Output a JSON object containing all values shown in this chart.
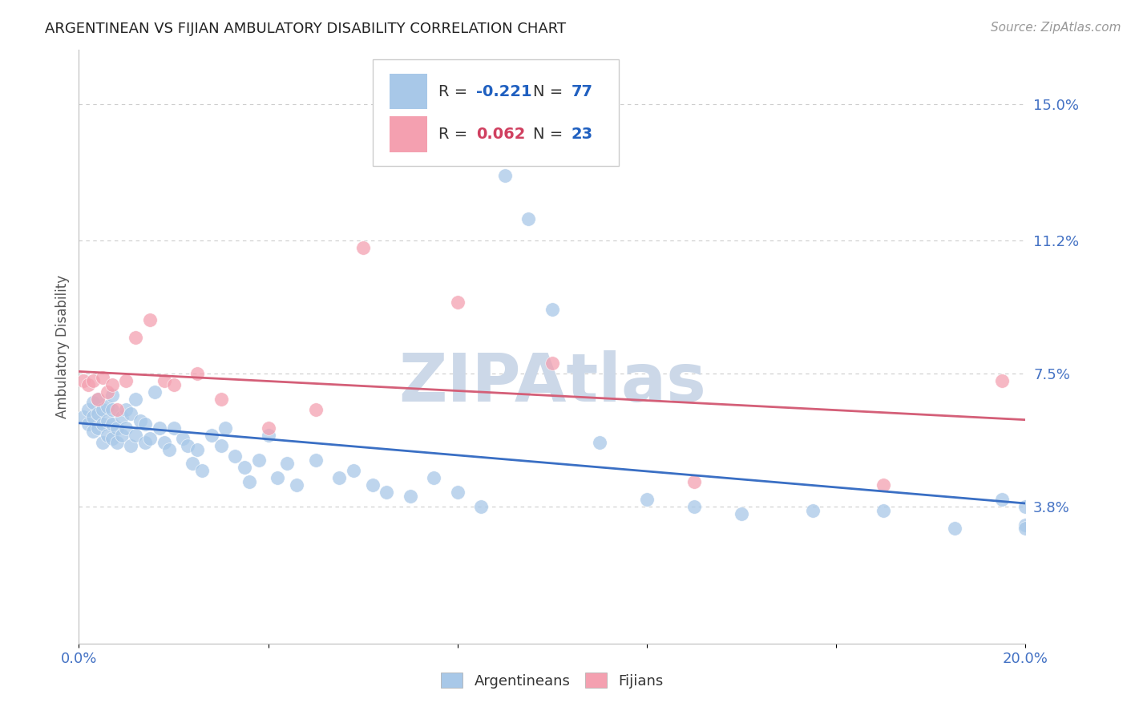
{
  "title": "ARGENTINEAN VS FIJIAN AMBULATORY DISABILITY CORRELATION CHART",
  "source": "Source: ZipAtlas.com",
  "ylabel_label": "Ambulatory Disability",
  "legend_blue_r": "-0.221",
  "legend_blue_n": "77",
  "legend_pink_r": "0.062",
  "legend_pink_n": "23",
  "blue_color": "#a8c8e8",
  "pink_color": "#f4a0b0",
  "blue_line_color": "#3a6fc4",
  "pink_line_color": "#d45f78",
  "title_color": "#222222",
  "source_color": "#999999",
  "legend_r_color_blue": "#2060c0",
  "legend_r_color_pink": "#d04060",
  "legend_n_color": "#2060c0",
  "watermark_color": "#ccd8e8",
  "xmin": 0.0,
  "xmax": 0.2,
  "ymin": 0.0,
  "ymax": 0.165,
  "ytick_values": [
    0.038,
    0.075,
    0.112,
    0.15
  ],
  "ytick_labels": [
    "3.8%",
    "7.5%",
    "11.2%",
    "15.0%"
  ],
  "grid_color": "#cccccc",
  "background_color": "#ffffff",
  "blue_x": [
    0.001,
    0.002,
    0.002,
    0.003,
    0.003,
    0.003,
    0.004,
    0.004,
    0.004,
    0.005,
    0.005,
    0.005,
    0.006,
    0.006,
    0.006,
    0.007,
    0.007,
    0.007,
    0.007,
    0.008,
    0.008,
    0.009,
    0.009,
    0.01,
    0.01,
    0.011,
    0.011,
    0.012,
    0.012,
    0.013,
    0.014,
    0.014,
    0.015,
    0.016,
    0.017,
    0.018,
    0.019,
    0.02,
    0.022,
    0.023,
    0.024,
    0.025,
    0.026,
    0.028,
    0.03,
    0.031,
    0.033,
    0.035,
    0.036,
    0.038,
    0.04,
    0.042,
    0.044,
    0.046,
    0.05,
    0.055,
    0.058,
    0.062,
    0.065,
    0.07,
    0.075,
    0.08,
    0.085,
    0.09,
    0.095,
    0.1,
    0.11,
    0.12,
    0.13,
    0.14,
    0.155,
    0.17,
    0.185,
    0.195,
    0.2,
    0.2,
    0.2
  ],
  "blue_y": [
    0.063,
    0.061,
    0.065,
    0.059,
    0.063,
    0.067,
    0.06,
    0.064,
    0.068,
    0.056,
    0.061,
    0.065,
    0.058,
    0.062,
    0.066,
    0.057,
    0.061,
    0.065,
    0.069,
    0.056,
    0.06,
    0.058,
    0.063,
    0.06,
    0.065,
    0.064,
    0.055,
    0.068,
    0.058,
    0.062,
    0.056,
    0.061,
    0.057,
    0.07,
    0.06,
    0.056,
    0.054,
    0.06,
    0.057,
    0.055,
    0.05,
    0.054,
    0.048,
    0.058,
    0.055,
    0.06,
    0.052,
    0.049,
    0.045,
    0.051,
    0.058,
    0.046,
    0.05,
    0.044,
    0.051,
    0.046,
    0.048,
    0.044,
    0.042,
    0.041,
    0.046,
    0.042,
    0.038,
    0.13,
    0.118,
    0.093,
    0.056,
    0.04,
    0.038,
    0.036,
    0.037,
    0.037,
    0.032,
    0.04,
    0.033,
    0.038,
    0.032
  ],
  "pink_x": [
    0.001,
    0.002,
    0.003,
    0.004,
    0.005,
    0.006,
    0.007,
    0.008,
    0.01,
    0.012,
    0.015,
    0.018,
    0.02,
    0.025,
    0.03,
    0.04,
    0.05,
    0.06,
    0.08,
    0.1,
    0.13,
    0.17,
    0.195
  ],
  "pink_y": [
    0.073,
    0.072,
    0.073,
    0.068,
    0.074,
    0.07,
    0.072,
    0.065,
    0.073,
    0.085,
    0.09,
    0.073,
    0.072,
    0.075,
    0.068,
    0.06,
    0.065,
    0.11,
    0.095,
    0.078,
    0.045,
    0.044,
    0.073
  ]
}
